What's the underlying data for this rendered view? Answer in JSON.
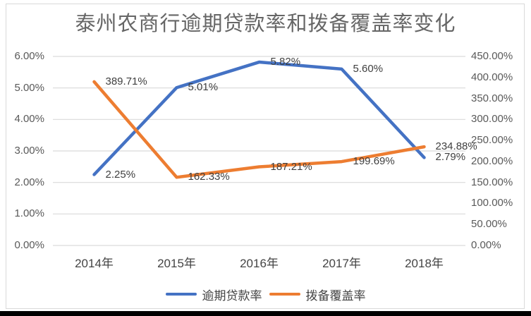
{
  "page": {
    "background": "#ffffff",
    "card_border_color": "#d9d9d9",
    "bottom_bar_color": "#000000"
  },
  "chart_data": {
    "type": "line",
    "title": "泰州农商行逾期贷款率和拨备覆盖率变化",
    "categories": [
      "2014年",
      "2015年",
      "2016年",
      "2017年",
      "2018年"
    ],
    "series": [
      {
        "name": "逾期贷款率",
        "axis": "left",
        "color": "#4472C4",
        "values": [
          2.25,
          5.01,
          5.82,
          5.6,
          2.79
        ],
        "data_labels": [
          "2.25%",
          "5.01%",
          "5.82%",
          "5.60%",
          "2.79%"
        ]
      },
      {
        "name": "拨备覆盖率",
        "axis": "right",
        "color": "#ED7D31",
        "values": [
          389.71,
          162.33,
          187.21,
          199.69,
          234.88
        ],
        "data_labels": [
          "389.71%",
          "162.33%",
          "187.21%",
          "199.69%",
          "234.88%"
        ]
      }
    ],
    "left_axis": {
      "min": 0,
      "max": 6,
      "ticks": [
        "0.00%",
        "1.00%",
        "2.00%",
        "3.00%",
        "4.00%",
        "5.00%",
        "6.00%"
      ]
    },
    "right_axis": {
      "min": 0,
      "max": 450,
      "ticks": [
        "0.00%",
        "50.00%",
        "100.00%",
        "150.00%",
        "200.00%",
        "250.00%",
        "300.00%",
        "350.00%",
        "400.00%",
        "450.00%"
      ]
    },
    "legend": {
      "position": "bottom",
      "entries": [
        "逾期贷款率",
        "拨备覆盖率"
      ]
    },
    "grid": true,
    "gridline_color": "#d9d9d9"
  }
}
